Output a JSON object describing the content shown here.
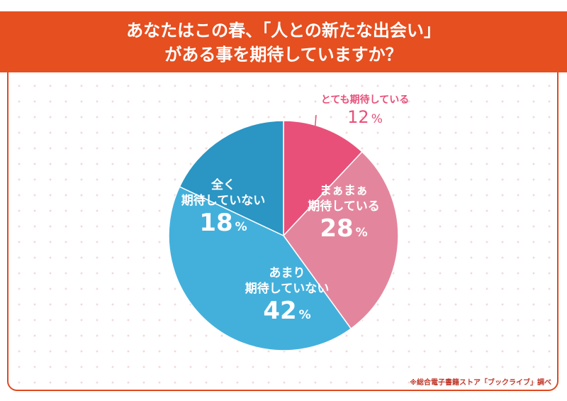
{
  "title": {
    "line1": "あなたはこの春、「人との新たな出会い」",
    "line2": "がある事を期待していますか？"
  },
  "source_note": "※総合電子書籍ストア「ブックライブ」調べ",
  "unit_label": "%",
  "chart_data": {
    "type": "pie",
    "start": "12 o'clock, clockwise",
    "slices": [
      {
        "label": "とても期待している",
        "value": 12,
        "color": "#e8507a"
      },
      {
        "label": "まぁまぁ\n期待している",
        "value": 28,
        "color": "#e3869d"
      },
      {
        "label": "あまり\n期待していない",
        "value": 42,
        "color": "#43b0dc"
      },
      {
        "label": "全く\n期待していない",
        "value": 18,
        "color": "#2b95c3"
      }
    ]
  }
}
